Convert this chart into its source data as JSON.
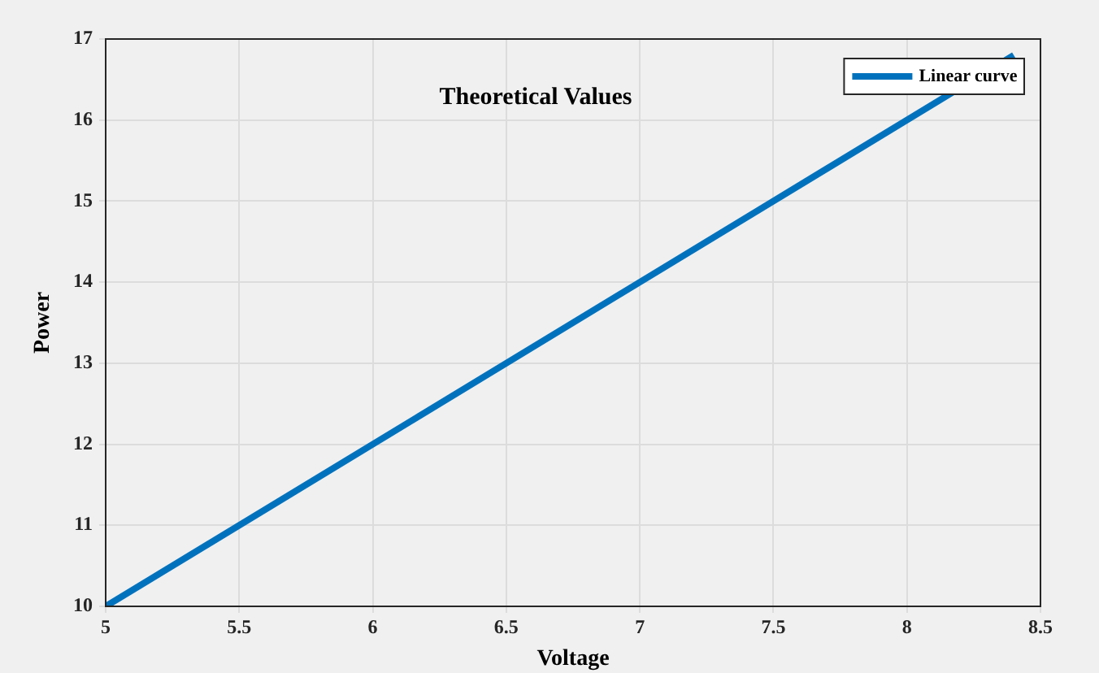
{
  "chart_data": {
    "type": "line",
    "title": "Theoretical Values",
    "xlabel": "Voltage",
    "ylabel": "Power",
    "x": [
      5,
      8.4
    ],
    "series": [
      {
        "name": "Linear curve",
        "color": "#0072bd",
        "values": [
          10,
          16.8
        ]
      }
    ],
    "xlim": [
      5,
      8.5
    ],
    "xticks": [
      5,
      5.5,
      6,
      6.5,
      7,
      7.5,
      8,
      8.5
    ],
    "ylim": [
      10,
      17
    ],
    "yticks": [
      10,
      11,
      12,
      13,
      14,
      15,
      16,
      17
    ],
    "grid": true,
    "legend": "top right",
    "line_style": "solid"
  }
}
